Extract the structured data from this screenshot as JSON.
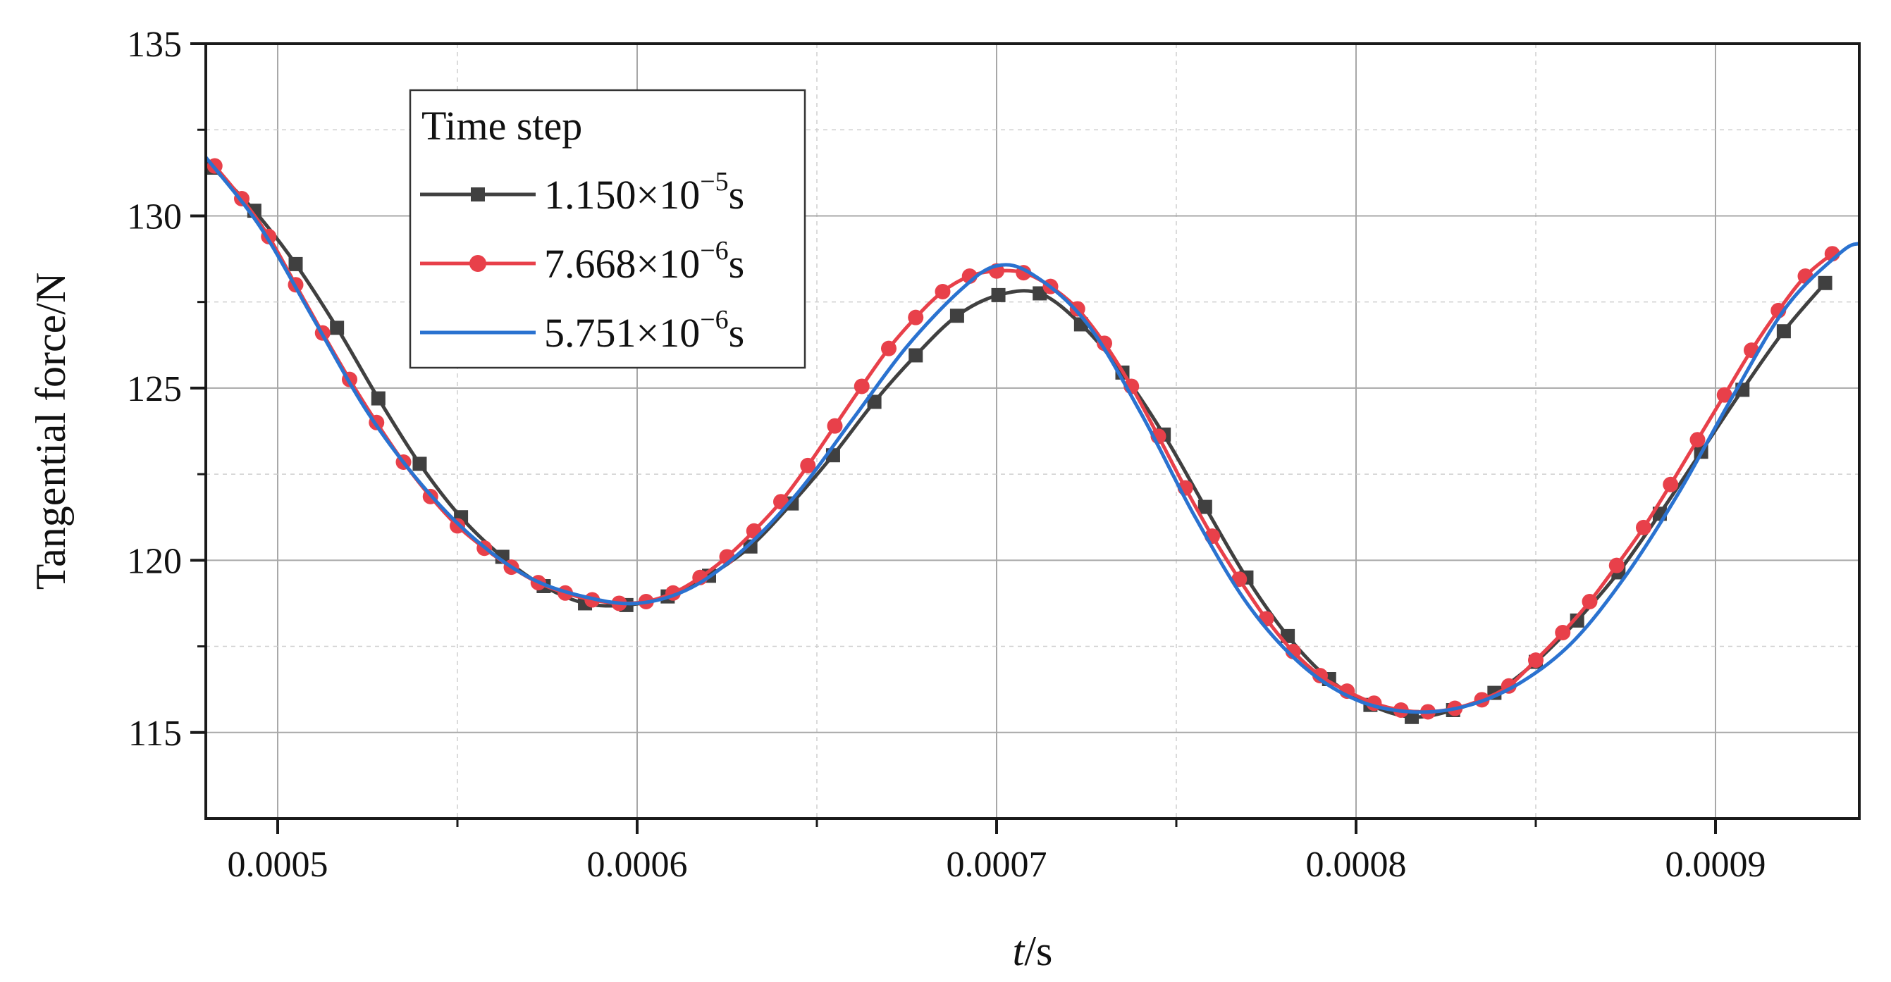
{
  "chart_data": {
    "type": "line",
    "title": "",
    "xlabel_italic": "t",
    "xlabel_unit": "/s",
    "ylabel": "Tangential force/N",
    "xlim": [
      0.00048,
      0.00094
    ],
    "ylim": [
      112.5,
      135
    ],
    "x_ticks": [
      0.0005,
      0.0006,
      0.0007,
      0.0008,
      0.0009
    ],
    "x_tick_labels": [
      "0.0005",
      "0.0006",
      "0.0007",
      "0.0008",
      "0.0009"
    ],
    "y_ticks": [
      115,
      120,
      125,
      130,
      135
    ],
    "y_tick_labels": [
      "115",
      "120",
      "125",
      "130",
      "135"
    ],
    "grid": true,
    "legend": {
      "title": "Time step",
      "placement": "top-left",
      "entries": [
        {
          "mantissa": "1.150×10",
          "exponent": "−5",
          "unit": "s"
        },
        {
          "mantissa": "7.668×10",
          "exponent": "−6",
          "unit": "s"
        },
        {
          "mantissa": "5.751×10",
          "exponent": "−6",
          "unit": "s"
        }
      ]
    },
    "series": [
      {
        "name": "1.150×10⁻⁵s",
        "color": "#404040",
        "marker": "square",
        "points": [
          [
            0.000482,
            131.4
          ],
          [
            0.0004935,
            130.15
          ],
          [
            0.000505,
            128.6
          ],
          [
            0.0005165,
            126.75
          ],
          [
            0.000528,
            124.7
          ],
          [
            0.0005395,
            122.8
          ],
          [
            0.000551,
            121.25
          ],
          [
            0.0005625,
            120.1
          ],
          [
            0.000574,
            119.25
          ],
          [
            0.0005855,
            118.75
          ],
          [
            0.000597,
            118.7
          ],
          [
            0.0006085,
            118.95
          ],
          [
            0.00062,
            119.55
          ],
          [
            0.0006315,
            120.4
          ],
          [
            0.000643,
            121.65
          ],
          [
            0.0006545,
            123.05
          ],
          [
            0.000666,
            124.6
          ],
          [
            0.0006775,
            125.95
          ],
          [
            0.000689,
            127.1
          ],
          [
            0.0007005,
            127.7
          ],
          [
            0.000712,
            127.75
          ],
          [
            0.0007235,
            126.85
          ],
          [
            0.000735,
            125.45
          ],
          [
            0.0007465,
            123.65
          ],
          [
            0.000758,
            121.55
          ],
          [
            0.0007695,
            119.5
          ],
          [
            0.000781,
            117.8
          ],
          [
            0.0007925,
            116.55
          ],
          [
            0.000804,
            115.8
          ],
          [
            0.0008155,
            115.45
          ],
          [
            0.000827,
            115.65
          ],
          [
            0.0008385,
            116.15
          ],
          [
            0.00085,
            117.05
          ],
          [
            0.0008615,
            118.25
          ],
          [
            0.000873,
            119.65
          ],
          [
            0.0008845,
            121.35
          ],
          [
            0.000896,
            123.15
          ],
          [
            0.0009075,
            124.95
          ],
          [
            0.000919,
            126.65
          ],
          [
            0.0009305,
            128.05
          ]
        ]
      },
      {
        "name": "7.668×10⁻⁶s",
        "color": "#e8404a",
        "marker": "circle",
        "points": [
          [
            0.0004825,
            131.45
          ],
          [
            0.00049,
            130.5
          ],
          [
            0.0004975,
            129.4
          ],
          [
            0.000505,
            128.0
          ],
          [
            0.0005125,
            126.6
          ],
          [
            0.00052,
            125.25
          ],
          [
            0.0005275,
            124.0
          ],
          [
            0.000535,
            122.85
          ],
          [
            0.0005425,
            121.85
          ],
          [
            0.00055,
            121.0
          ],
          [
            0.0005575,
            120.35
          ],
          [
            0.000565,
            119.8
          ],
          [
            0.0005725,
            119.35
          ],
          [
            0.00058,
            119.05
          ],
          [
            0.0005875,
            118.85
          ],
          [
            0.000595,
            118.75
          ],
          [
            0.0006025,
            118.8
          ],
          [
            0.00061,
            119.05
          ],
          [
            0.0006175,
            119.5
          ],
          [
            0.000625,
            120.1
          ],
          [
            0.0006325,
            120.85
          ],
          [
            0.00064,
            121.7
          ],
          [
            0.0006475,
            122.75
          ],
          [
            0.000655,
            123.9
          ],
          [
            0.0006625,
            125.05
          ],
          [
            0.00067,
            126.15
          ],
          [
            0.0006775,
            127.05
          ],
          [
            0.000685,
            127.8
          ],
          [
            0.0006925,
            128.25
          ],
          [
            0.0007,
            128.4
          ],
          [
            0.0007075,
            128.35
          ],
          [
            0.000715,
            127.95
          ],
          [
            0.0007225,
            127.3
          ],
          [
            0.00073,
            126.3
          ],
          [
            0.0007375,
            125.05
          ],
          [
            0.000745,
            123.6
          ],
          [
            0.0007525,
            122.1
          ],
          [
            0.00076,
            120.7
          ],
          [
            0.0007675,
            119.45
          ],
          [
            0.000775,
            118.3
          ],
          [
            0.0007825,
            117.35
          ],
          [
            0.00079,
            116.65
          ],
          [
            0.0007975,
            116.2
          ],
          [
            0.000805,
            115.85
          ],
          [
            0.0008125,
            115.65
          ],
          [
            0.00082,
            115.6
          ],
          [
            0.0008275,
            115.7
          ],
          [
            0.000835,
            115.95
          ],
          [
            0.0008425,
            116.35
          ],
          [
            0.00085,
            117.1
          ],
          [
            0.0008575,
            117.9
          ],
          [
            0.000865,
            118.8
          ],
          [
            0.0008725,
            119.85
          ],
          [
            0.00088,
            120.95
          ],
          [
            0.0008875,
            122.2
          ],
          [
            0.000895,
            123.5
          ],
          [
            0.0009025,
            124.8
          ],
          [
            0.00091,
            126.1
          ],
          [
            0.0009175,
            127.25
          ],
          [
            0.000925,
            128.25
          ],
          [
            0.0009325,
            128.9
          ]
        ]
      },
      {
        "name": "5.751×10⁻⁶s",
        "color": "#2a72d0",
        "marker": "none",
        "points": [
          [
            0.00048,
            131.7
          ],
          [
            0.000495,
            129.7
          ],
          [
            0.00051,
            127.0
          ],
          [
            0.000525,
            124.3
          ],
          [
            0.00054,
            122.2
          ],
          [
            0.000555,
            120.6
          ],
          [
            0.00057,
            119.5
          ],
          [
            0.000585,
            118.95
          ],
          [
            0.0006,
            118.75
          ],
          [
            0.000615,
            119.2
          ],
          [
            0.00063,
            120.35
          ],
          [
            0.000645,
            122.0
          ],
          [
            0.00066,
            124.1
          ],
          [
            0.000675,
            126.2
          ],
          [
            0.00069,
            127.85
          ],
          [
            0.0007,
            128.55
          ],
          [
            0.00071,
            128.3
          ],
          [
            0.000725,
            126.9
          ],
          [
            0.00074,
            124.3
          ],
          [
            0.000755,
            121.3
          ],
          [
            0.00077,
            118.7
          ],
          [
            0.000785,
            116.95
          ],
          [
            0.0008,
            115.95
          ],
          [
            0.000815,
            115.6
          ],
          [
            0.00083,
            115.75
          ],
          [
            0.000845,
            116.4
          ],
          [
            0.00086,
            117.6
          ],
          [
            0.000875,
            119.55
          ],
          [
            0.00089,
            122.0
          ],
          [
            0.000905,
            124.8
          ],
          [
            0.00092,
            127.4
          ],
          [
            0.000935,
            128.95
          ],
          [
            0.00094,
            129.2
          ]
        ]
      }
    ]
  }
}
